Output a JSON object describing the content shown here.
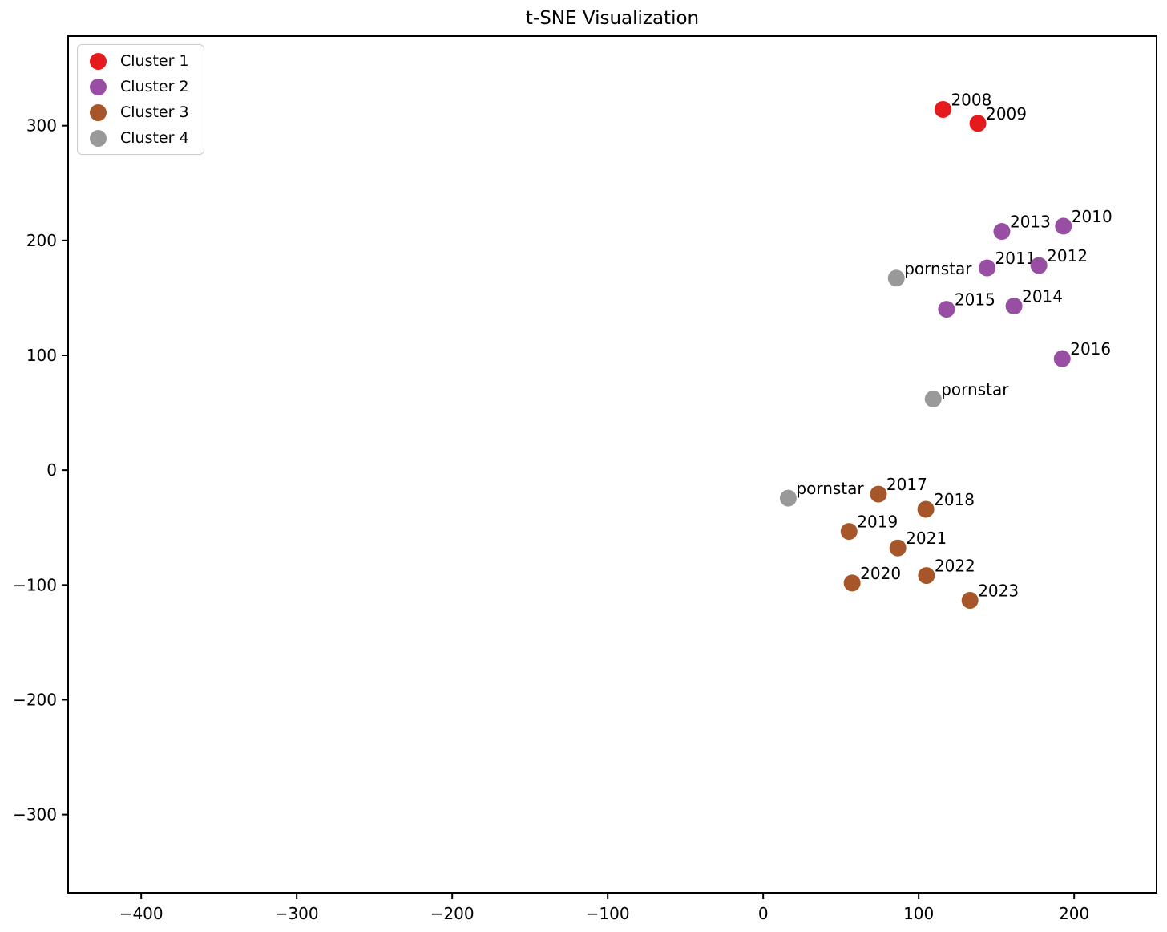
{
  "title": "t-SNE Visualization",
  "chart_data": {
    "type": "scatter",
    "title": "t-SNE Visualization",
    "xlabel": "",
    "ylabel": "",
    "grid": false,
    "xlim": [
      -447,
      253
    ],
    "ylim": [
      -368,
      378
    ],
    "xticks": [
      -400,
      -300,
      -200,
      -100,
      0,
      100,
      200
    ],
    "yticks": [
      -300,
      -200,
      -100,
      0,
      100,
      200,
      300
    ],
    "marker_radius_px": 10.5,
    "legend": {
      "position": "upper left",
      "entries": [
        {
          "label": "Cluster 1",
          "color": "#E41A1C"
        },
        {
          "label": "Cluster 2",
          "color": "#984EA3"
        },
        {
          "label": "Cluster 3",
          "color": "#A65628"
        },
        {
          "label": "Cluster 4",
          "color": "#999999"
        }
      ]
    },
    "series": [
      {
        "name": "Cluster 1",
        "color": "#E41A1C",
        "points": [
          {
            "label": "2008",
            "x": 115.6,
            "y": 314.1
          },
          {
            "label": "2009",
            "x": 138.1,
            "y": 302.0
          }
        ]
      },
      {
        "name": "Cluster 2",
        "color": "#984EA3",
        "points": [
          {
            "label": "2010",
            "x": 193.1,
            "y": 212.5
          },
          {
            "label": "2011",
            "x": 144.0,
            "y": 176.1
          },
          {
            "label": "2012",
            "x": 177.3,
            "y": 178.2
          },
          {
            "label": "2013",
            "x": 153.5,
            "y": 207.9
          },
          {
            "label": "2014",
            "x": 161.3,
            "y": 142.9
          },
          {
            "label": "2015",
            "x": 117.9,
            "y": 140.1
          },
          {
            "label": "2016",
            "x": 192.3,
            "y": 97.1
          }
        ]
      },
      {
        "name": "Cluster 3",
        "color": "#A65628",
        "points": [
          {
            "label": "2017",
            "x": 74.1,
            "y": -20.9
          },
          {
            "label": "2018",
            "x": 104.6,
            "y": -34.1
          },
          {
            "label": "2019",
            "x": 55.2,
            "y": -53.4
          },
          {
            "label": "2020",
            "x": 57.2,
            "y": -98.3
          },
          {
            "label": "2021",
            "x": 86.6,
            "y": -67.8
          },
          {
            "label": "2022",
            "x": 105.0,
            "y": -91.8
          },
          {
            "label": "2023",
            "x": 133.0,
            "y": -113.4
          }
        ]
      },
      {
        "name": "Cluster 4",
        "color": "#999999",
        "points": [
          {
            "label": "pornstar",
            "x": 85.6,
            "y": 167.2
          },
          {
            "label": "pornstar",
            "x": 109.3,
            "y": 62.0
          },
          {
            "label": "pornstar",
            "x": 16.1,
            "y": -24.4
          }
        ]
      }
    ]
  }
}
